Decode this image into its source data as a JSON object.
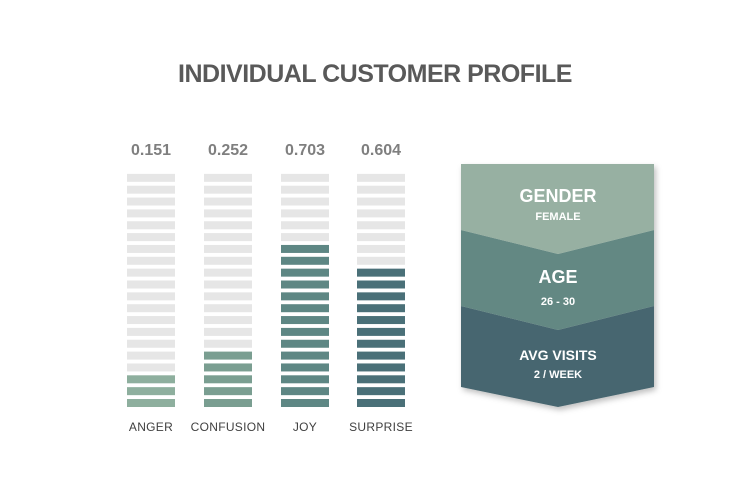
{
  "title": "INDIVIDUAL CUSTOMER PROFILE",
  "chart_data": {
    "type": "bar",
    "categories": [
      "ANGER",
      "CONFUSION",
      "JOY",
      "SURPRISE"
    ],
    "values": [
      0.151,
      0.252,
      0.703,
      0.604
    ],
    "value_labels": [
      "0.151",
      "0.252",
      "0.703",
      "0.604"
    ],
    "ylim": [
      0,
      1
    ],
    "segments": 20,
    "colors": [
      "#8eaf9e",
      "#7a9e91",
      "#5e8784",
      "#4a7078"
    ],
    "empty_color": "#e6e6e6"
  },
  "profile": {
    "gender": {
      "title": "GENDER",
      "value": "FEMALE",
      "color": "#97b0a2"
    },
    "age": {
      "title": "AGE",
      "value": "26 - 30",
      "color": "#648883"
    },
    "visits": {
      "title": "AVG VISITS",
      "value": "2 / WEEK",
      "color": "#47666f"
    }
  }
}
